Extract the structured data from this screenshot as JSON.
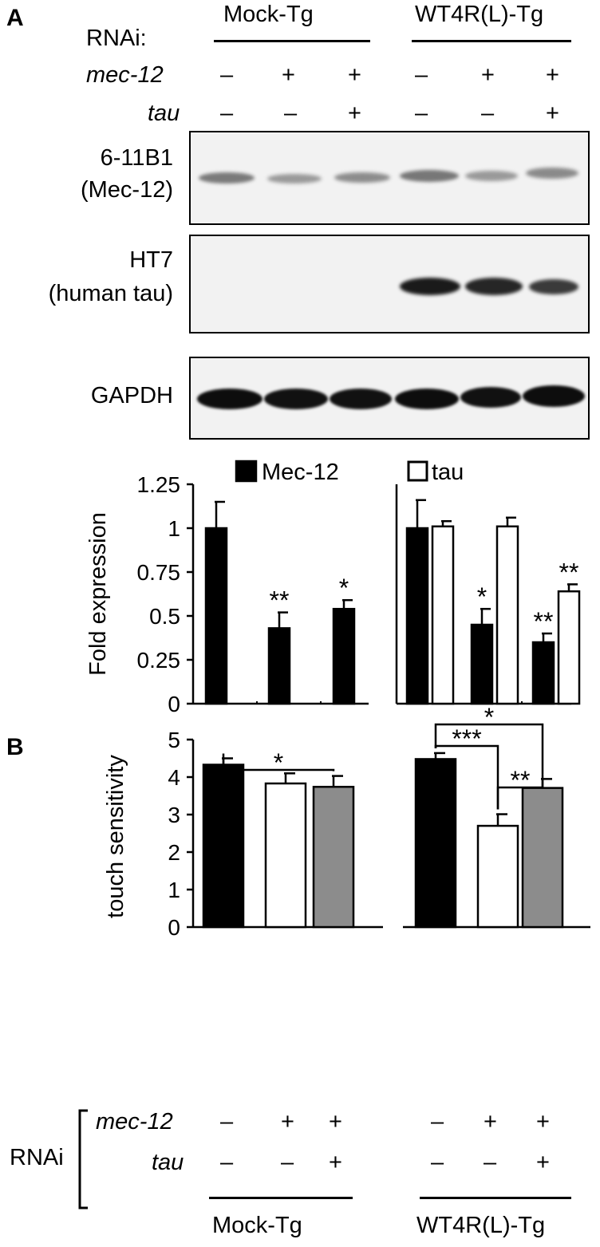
{
  "panel_a": {
    "label": "A",
    "rnai_label": "RNAi:",
    "group_mock": "Mock-Tg",
    "group_wt": "WT4R(L)-Tg",
    "row_mec12_label": "mec-12",
    "row_tau_label": "tau",
    "mec12_signs": [
      "–",
      "+",
      "+",
      "–",
      "+",
      "+"
    ],
    "tau_signs": [
      "–",
      "–",
      "+",
      "–",
      "–",
      "+"
    ],
    "blots": [
      {
        "label_line1": "6-11B1",
        "label_line2": "(Mec-12)"
      },
      {
        "label_line1": "HT7",
        "label_line2": "(human tau)"
      },
      {
        "label_line1": "GAPDH",
        "label_line2": ""
      }
    ],
    "legend": {
      "mec12": "Mec-12",
      "tau": "tau"
    }
  },
  "panel_b": {
    "label": "B",
    "rnai_label": "RNAi",
    "row_mec12_label": "mec-12",
    "row_tau_label": "tau",
    "mec12_signs": [
      "–",
      "+",
      "+",
      "–",
      "+",
      "+"
    ],
    "tau_signs": [
      "–",
      "–",
      "+",
      "–",
      "–",
      "+"
    ],
    "group_mock": "Mock-Tg",
    "group_wt": "WT4R(L)-Tg"
  },
  "chart_data": [
    {
      "type": "bar",
      "ylabel": "Fold expression",
      "ylim": [
        0,
        1.25
      ],
      "yticks": [
        "0",
        "0.25",
        "0.5",
        "0.75",
        "1",
        "1.25"
      ],
      "legend": [
        "Mec-12",
        "tau"
      ],
      "legend_position": "top",
      "series_colors": {
        "Mec-12": "#000000",
        "tau": "#ffffff"
      },
      "groups": [
        {
          "name": "Mock-Tg",
          "bars": [
            {
              "series": "Mec-12",
              "value": 1.0,
              "error": 0.15,
              "sig": ""
            },
            {
              "series": "Mec-12",
              "value": 0.43,
              "error": 0.09,
              "sig": "**"
            },
            {
              "series": "Mec-12",
              "value": 0.54,
              "error": 0.05,
              "sig": "*"
            }
          ]
        },
        {
          "name": "WT4R(L)-Tg",
          "bars": [
            {
              "series": "Mec-12",
              "value": 1.0,
              "error": 0.16,
              "sig": ""
            },
            {
              "series": "tau",
              "value": 1.01,
              "error": 0.03,
              "sig": ""
            },
            {
              "series": "Mec-12",
              "value": 0.45,
              "error": 0.09,
              "sig": "*"
            },
            {
              "series": "tau",
              "value": 1.01,
              "error": 0.05,
              "sig": ""
            },
            {
              "series": "Mec-12",
              "value": 0.35,
              "error": 0.05,
              "sig": "**"
            },
            {
              "series": "tau",
              "value": 0.64,
              "error": 0.04,
              "sig": "**"
            }
          ]
        }
      ]
    },
    {
      "type": "bar",
      "ylabel": "touch sensitivity",
      "ylim": [
        0,
        5
      ],
      "yticks": [
        "0",
        "1",
        "2",
        "3",
        "4",
        "5"
      ],
      "series_colors": {
        "control": "#000000",
        "mec-12": "#ffffff",
        "mec-12 + tau": "#8c8c8c"
      },
      "groups": [
        {
          "name": "Mock-Tg",
          "bars": [
            {
              "value": 4.33,
              "error": 0.17,
              "fill": "#000000"
            },
            {
              "value": 3.83,
              "error": 0.27,
              "fill": "#ffffff"
            },
            {
              "value": 3.74,
              "error": 0.29,
              "fill": "#8c8c8c"
            }
          ]
        },
        {
          "name": "WT4R(L)-Tg",
          "bars": [
            {
              "value": 4.48,
              "error": 0.16,
              "fill": "#000000"
            },
            {
              "value": 2.7,
              "error": 0.31,
              "fill": "#ffffff"
            },
            {
              "value": 3.71,
              "error": 0.24,
              "fill": "#8c8c8c"
            }
          ]
        }
      ],
      "significance": [
        {
          "group": "Mock-Tg",
          "from": 0,
          "to": 2,
          "label": "*"
        },
        {
          "group": "WT4R(L)-Tg",
          "from": 0,
          "to": 1,
          "label": "***"
        },
        {
          "group": "WT4R(L)-Tg",
          "from": 0,
          "to": 2,
          "label": "*"
        },
        {
          "group": "WT4R(L)-Tg",
          "from": 1,
          "to": 2,
          "label": "**"
        }
      ]
    }
  ]
}
